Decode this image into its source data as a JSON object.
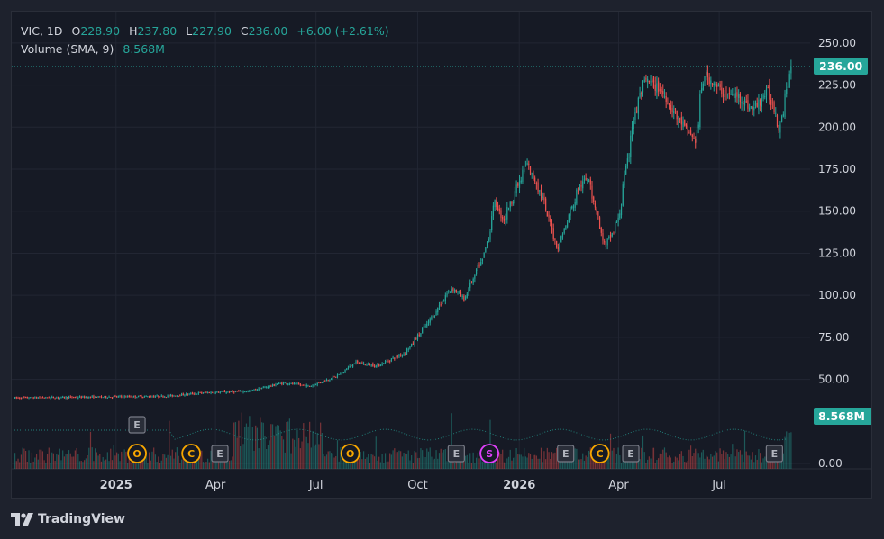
{
  "legend": {
    "symbol": "VIC",
    "interval": "1D",
    "open_label": "O",
    "open": "228.90",
    "high_label": "H",
    "high": "237.80",
    "low_label": "L",
    "low": "227.90",
    "close_label": "C",
    "close": "236.00",
    "change": "+6.00 (+2.61%)",
    "volume_label": "Volume (SMA, 9)",
    "volume_value": "8.568M"
  },
  "price_badge": "236.00",
  "volume_badge": "8.568M",
  "brand": "TradingView",
  "colors": {
    "up": "#26a69a",
    "down": "#ef5350",
    "background": "#161a25",
    "text": "#d1d4dc",
    "event_orange": "#f7a600",
    "event_pink": "#e040fb"
  },
  "chart_data": {
    "type": "candlestick",
    "price_ticks": [
      "250.00",
      "225.00",
      "200.00",
      "175.00",
      "150.00",
      "125.00",
      "100.00",
      "75.00",
      "50.00",
      "0.00"
    ],
    "time_labels": [
      "2025",
      "Apr",
      "Jul",
      "Oct",
      "2026",
      "Apr",
      "Jul"
    ],
    "bold_time_labels": [
      "2025",
      "2026"
    ],
    "price_keypoints": [
      {
        "date": "2024-10-01",
        "price": 39
      },
      {
        "date": "2025-02-15",
        "price": 40
      },
      {
        "date": "2025-03-20",
        "price": 42
      },
      {
        "date": "2025-05-01",
        "price": 43
      },
      {
        "date": "2025-06-01",
        "price": 48
      },
      {
        "date": "2025-06-25",
        "price": 46
      },
      {
        "date": "2025-07-20",
        "price": 52
      },
      {
        "date": "2025-08-05",
        "price": 60
      },
      {
        "date": "2025-08-25",
        "price": 58
      },
      {
        "date": "2025-09-20",
        "price": 66
      },
      {
        "date": "2025-10-15",
        "price": 88
      },
      {
        "date": "2025-11-01",
        "price": 105
      },
      {
        "date": "2025-11-12",
        "price": 98
      },
      {
        "date": "2025-12-01",
        "price": 125
      },
      {
        "date": "2025-12-10",
        "price": 155
      },
      {
        "date": "2025-12-18",
        "price": 145
      },
      {
        "date": "2026-01-08",
        "price": 178
      },
      {
        "date": "2026-01-20",
        "price": 162
      },
      {
        "date": "2026-02-05",
        "price": 128
      },
      {
        "date": "2026-02-25",
        "price": 165
      },
      {
        "date": "2026-03-05",
        "price": 170
      },
      {
        "date": "2026-03-20",
        "price": 128
      },
      {
        "date": "2026-04-01",
        "price": 145
      },
      {
        "date": "2026-04-15",
        "price": 205
      },
      {
        "date": "2026-04-25",
        "price": 228
      },
      {
        "date": "2026-05-10",
        "price": 222
      },
      {
        "date": "2026-05-25",
        "price": 205
      },
      {
        "date": "2026-06-10",
        "price": 192
      },
      {
        "date": "2026-06-18",
        "price": 232
      },
      {
        "date": "2026-07-05",
        "price": 220
      },
      {
        "date": "2026-07-20",
        "price": 218
      },
      {
        "date": "2026-08-01",
        "price": 210
      },
      {
        "date": "2026-08-15",
        "price": 222
      },
      {
        "date": "2026-08-25",
        "price": 200
      },
      {
        "date": "2026-09-05",
        "price": 236
      }
    ],
    "volume_sma_last": "8.568M",
    "events": [
      {
        "type": "E",
        "date": "2025-01-20",
        "row": 2
      },
      {
        "type": "O",
        "date": "2025-01-20",
        "row": 1
      },
      {
        "type": "C",
        "date": "2025-03-10",
        "row": 1
      },
      {
        "type": "E",
        "date": "2025-04-05",
        "row": 1
      },
      {
        "type": "O",
        "date": "2025-08-01",
        "row": 1
      },
      {
        "type": "E",
        "date": "2025-11-05",
        "row": 1
      },
      {
        "type": "S",
        "date": "2025-12-05",
        "row": 1
      },
      {
        "type": "E",
        "date": "2026-02-12",
        "row": 1
      },
      {
        "type": "C",
        "date": "2026-03-15",
        "row": 1
      },
      {
        "type": "E",
        "date": "2026-04-12",
        "row": 1
      },
      {
        "type": "E",
        "date": "2026-08-20",
        "row": 1
      }
    ]
  }
}
